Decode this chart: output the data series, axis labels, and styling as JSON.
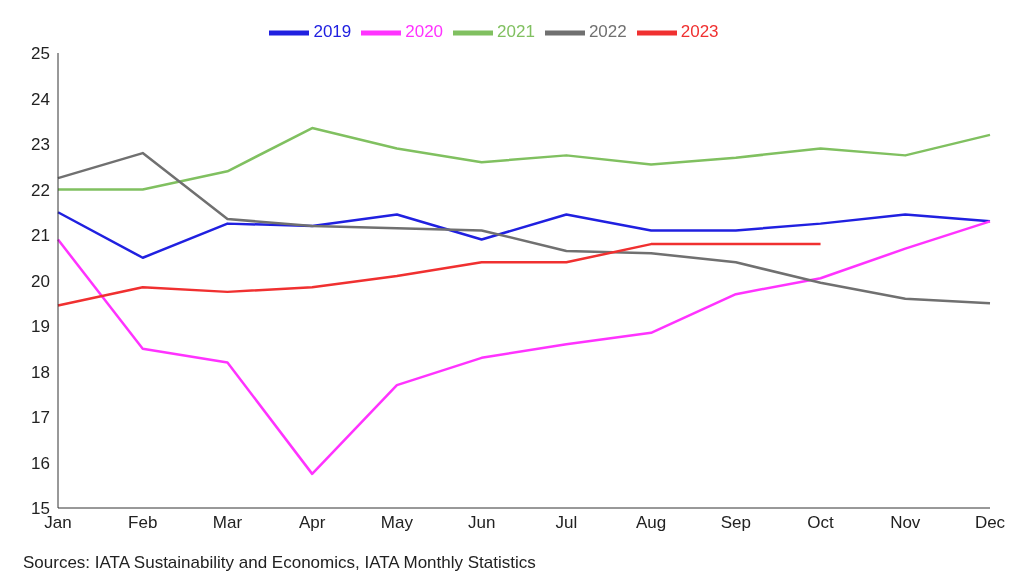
{
  "chart_data": {
    "type": "line",
    "categories": [
      "Jan",
      "Feb",
      "Mar",
      "Apr",
      "May",
      "Jun",
      "Jul",
      "Aug",
      "Sep",
      "Oct",
      "Nov",
      "Dec"
    ],
    "series": [
      {
        "name": "2019",
        "color": "#2020e0",
        "values": [
          21.5,
          20.5,
          21.25,
          21.2,
          21.45,
          20.9,
          21.45,
          21.1,
          21.1,
          21.25,
          21.45,
          21.3
        ]
      },
      {
        "name": "2020",
        "color": "#ff33ff",
        "values": [
          20.9,
          18.5,
          18.2,
          15.75,
          17.7,
          18.3,
          18.6,
          18.85,
          19.7,
          20.05,
          20.7,
          21.3
        ]
      },
      {
        "name": "2021",
        "color": "#80c060",
        "values": [
          22.0,
          22.0,
          22.4,
          23.35,
          22.9,
          22.6,
          22.75,
          22.55,
          22.7,
          22.9,
          22.75,
          23.2
        ]
      },
      {
        "name": "2022",
        "color": "#707070",
        "values": [
          22.25,
          22.8,
          21.35,
          21.2,
          21.15,
          21.1,
          20.65,
          20.6,
          20.4,
          19.95,
          19.6,
          19.5
        ]
      },
      {
        "name": "2023",
        "color": "#f03030",
        "values": [
          19.45,
          19.85,
          19.75,
          19.85,
          20.1,
          20.4,
          20.4,
          20.8,
          20.8,
          20.8,
          null,
          null
        ]
      }
    ],
    "ylim": [
      15,
      25
    ],
    "yticks": [
      15,
      16,
      17,
      18,
      19,
      20,
      21,
      22,
      23,
      24,
      25
    ],
    "grid": false,
    "legend": "top",
    "marker": "none",
    "line_style": "solid",
    "annotations": [
      "Sources: IATA Sustainability and Economics, IATA Monthly Statistics"
    ]
  }
}
